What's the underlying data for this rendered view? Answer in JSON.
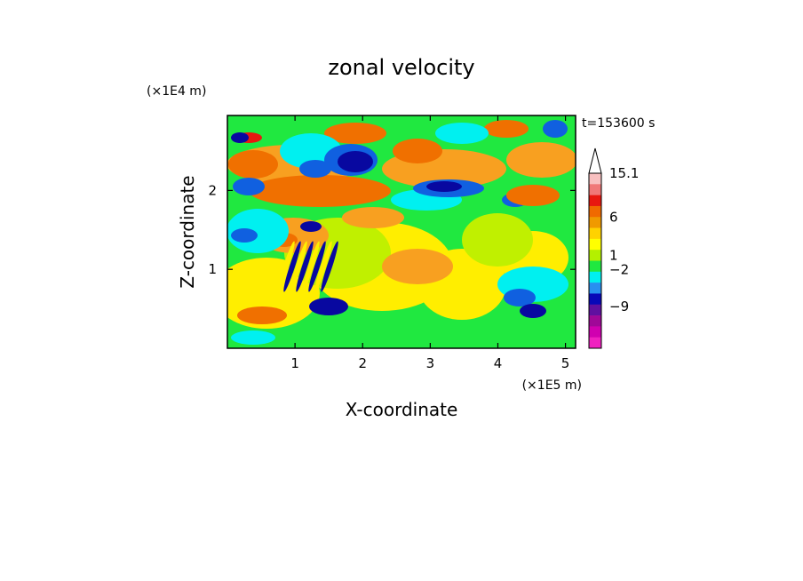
{
  "chart_data": {
    "type": "heatmap",
    "title": "zonal velocity",
    "xlabel": "X-coordinate",
    "ylabel": "Z-coordinate",
    "x_scale_label": "(×1E5 m)",
    "y_scale_label": "(×1E4 m)",
    "time_label": "t=153600 s",
    "xlim": [
      0,
      5.15
    ],
    "ylim": [
      0,
      2.95
    ],
    "x_ticks": [
      "1",
      "2",
      "3",
      "4",
      "5"
    ],
    "x_tick_values": [
      1,
      2,
      3,
      4,
      5
    ],
    "y_ticks": [
      "1",
      "2"
    ],
    "y_tick_values": [
      1,
      2
    ],
    "colorbar": {
      "labels": [
        "15.1",
        "6",
        "1",
        "−2",
        "−9"
      ],
      "label_values": [
        15.1,
        6,
        1,
        -2,
        -9
      ],
      "colors": [
        "#f8c0c0",
        "#f07878",
        "#e81810",
        "#f06a00",
        "#f09a00",
        "#ffd200",
        "#ffff00",
        "#b4f000",
        "#20e840",
        "#00f0f0",
        "#2890f0",
        "#0808b8",
        "#6010a0",
        "#a00898",
        "#d000b0",
        "#f020c0"
      ],
      "extend_max": true
    },
    "series_colors": {
      "red": "#e81810",
      "orange": "#f07000",
      "light_orange": "#f8a020",
      "yellow": "#ffee00",
      "lime": "#c0f000",
      "green": "#20e840",
      "cyan": "#00f0f0",
      "blue": "#1060e0",
      "navy": "#0808a0"
    }
  }
}
